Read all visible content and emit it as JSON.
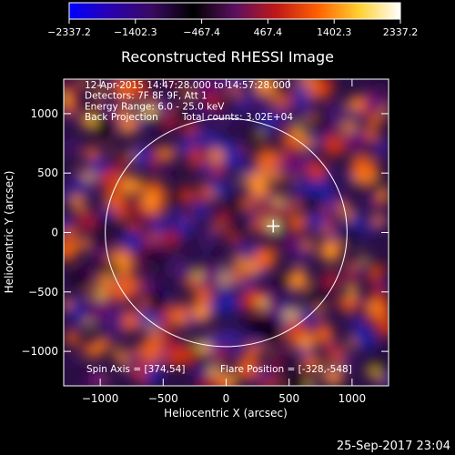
{
  "chart_data": {
    "type": "heatmap",
    "title": "Reconstructed RHESSI Image",
    "xlabel": "Heliocentric X (arcsec)",
    "ylabel": "Heliocentric Y (arcsec)",
    "xlim": [
      -1290,
      1290
    ],
    "ylim": [
      -1290,
      1290
    ],
    "x_ticks": [
      -1000,
      -500,
      0,
      500,
      1000
    ],
    "y_ticks": [
      -1000,
      -500,
      0,
      500,
      1000
    ],
    "x_tick_labels": [
      "−1000",
      "−500",
      "0",
      "500",
      "1000"
    ],
    "y_tick_labels": [
      "−1000",
      "−500",
      "0",
      "500",
      "1000"
    ],
    "colorbar": {
      "min": -2337.2,
      "max": 2337.2,
      "ticks": [
        -2337.2,
        -1402.3,
        -467.4,
        467.4,
        1402.3,
        2337.2
      ],
      "tick_labels": [
        "−2337.2",
        "−1402.3",
        "−467.4",
        "467.4",
        "1402.3",
        "2337.2"
      ],
      "colors": [
        "#0000ff",
        "#2a00b0",
        "#3a0a60",
        "#000000",
        "#5a1060",
        "#c01818",
        "#ff6000",
        "#ffd030",
        "#ffffff"
      ]
    },
    "solar_limb_radius_arcsec": 960,
    "annotations": [
      "12-Apr-2015 14:47:28.000 to 14:57:28.000",
      "Detectors: 7F 8F 9F, Att 1",
      "Energy Range: 6.0 - 25.0 keV",
      "Back Projection",
      "Total counts: 3.02E+04"
    ],
    "spin_axis_label": "Spin Axis = [374,54]",
    "spin_axis": [
      374,
      54
    ],
    "flare_position_label": "Flare Position = [-328,-548]",
    "flare_position": [
      -328,
      -548
    ],
    "timestamp": "25-Sep-2017 23:04"
  }
}
